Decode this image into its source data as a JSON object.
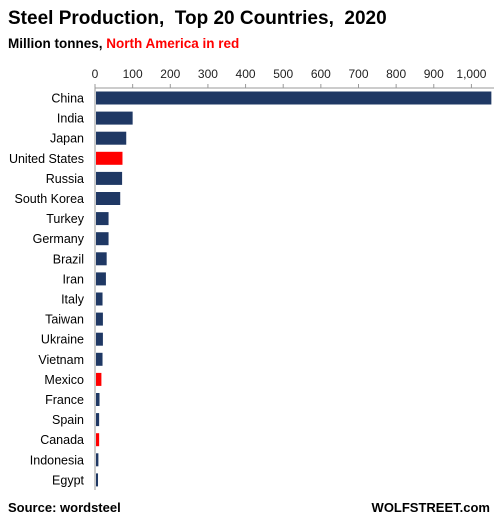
{
  "header": {
    "title": "Steel Production,  Top 20 Countries,  2020",
    "subtitle_prefix": "Million tonnes, ",
    "subtitle_highlight": "North America in red"
  },
  "footer": {
    "source": "Source: wordsteel",
    "brand": "WOLFSTREET.com"
  },
  "colors": {
    "default_bar": "#1f3864",
    "highlight_bar": "#ff0000",
    "axis": "#999999"
  },
  "chart_data": {
    "type": "bar",
    "orientation": "horizontal",
    "title": "Steel Production,  Top 20 Countries,  2020",
    "subtitle": "Million tonnes, North America in red",
    "categories": [
      "China",
      "India",
      "Japan",
      "United States",
      "Russia",
      "South Korea",
      "Turkey",
      "Germany",
      "Brazil",
      "Iran",
      "Italy",
      "Taiwan",
      "Ukraine",
      "Vietnam",
      "Mexico",
      "France",
      "Spain",
      "Canada",
      "Indonesia",
      "Egypt"
    ],
    "values": [
      1053,
      100,
      83,
      73,
      72,
      67,
      36,
      36,
      31,
      29,
      20,
      21,
      21,
      20,
      17,
      12,
      11,
      11,
      9,
      8
    ],
    "highlighted": [
      "United States",
      "Mexico",
      "Canada"
    ],
    "xlim": [
      0,
      1060
    ],
    "xticks": [
      0,
      100,
      200,
      300,
      400,
      500,
      600,
      700,
      800,
      900,
      1000
    ],
    "xtick_labels": [
      "0",
      "100",
      "200",
      "300",
      "400",
      "500",
      "600",
      "700",
      "800",
      "900",
      "1,000"
    ],
    "tick_position": "top",
    "grid": false
  }
}
